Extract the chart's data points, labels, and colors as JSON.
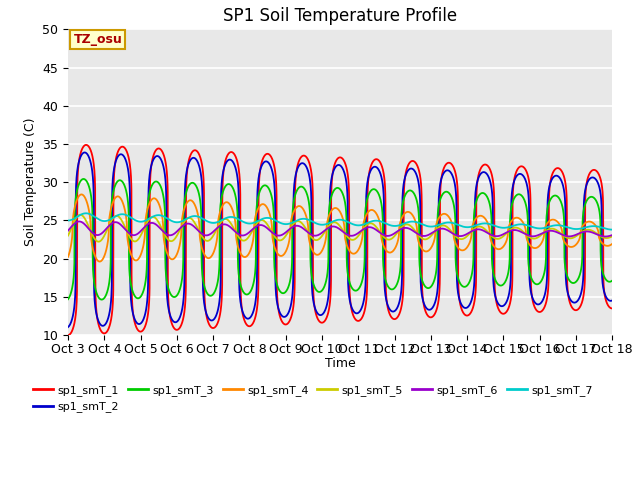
{
  "title": "SP1 Soil Temperature Profile",
  "xlabel": "Time",
  "ylabel": "Soil Temperature (C)",
  "ylim": [
    10,
    50
  ],
  "x_tick_labels": [
    "Oct 3",
    "Oct 4",
    "Oct 5",
    "Oct 6",
    "Oct 7",
    "Oct 8",
    "Oct 9",
    "Oct 10",
    "Oct 11",
    "Oct 12",
    "Oct 13",
    "Oct 14",
    "Oct 15",
    "Oct 16",
    "Oct 17",
    "Oct 18"
  ],
  "annotation_text": "TZ_osu",
  "annotation_bg": "#ffffcc",
  "annotation_border": "#cc9900",
  "annotation_text_color": "#aa0000",
  "grid_color": "#ffffff",
  "bg_color": "#e8e8e8",
  "fig_bg": "#ffffff",
  "series_colors": [
    "#ff0000",
    "#0000cc",
    "#00cc00",
    "#ff8800",
    "#cccc00",
    "#9900cc",
    "#00cccc"
  ],
  "series_labels": [
    "sp1_smT_1",
    "sp1_smT_2",
    "sp1_smT_3",
    "sp1_smT_4",
    "sp1_smT_5",
    "sp1_smT_6",
    "sp1_smT_7"
  ],
  "num_days": 15,
  "points_per_day": 240,
  "mean_temps": [
    22.5,
    22.5,
    22.5,
    24.0,
    24.0,
    24.0,
    25.5
  ],
  "mean_end": [
    22.5,
    22.5,
    22.5,
    23.2,
    23.2,
    23.2,
    24.0
  ],
  "amp_start": [
    12.5,
    11.5,
    8.0,
    4.5,
    1.8,
    0.9,
    0.5
  ],
  "amp_end": [
    9.0,
    8.0,
    5.5,
    1.5,
    0.5,
    0.3,
    0.2
  ],
  "phase_offsets": [
    0.0,
    0.25,
    0.45,
    0.8,
    1.0,
    1.2,
    0.0
  ],
  "sharpness": [
    6.0,
    5.5,
    4.0,
    2.0,
    1.0,
    1.0,
    1.0
  ]
}
